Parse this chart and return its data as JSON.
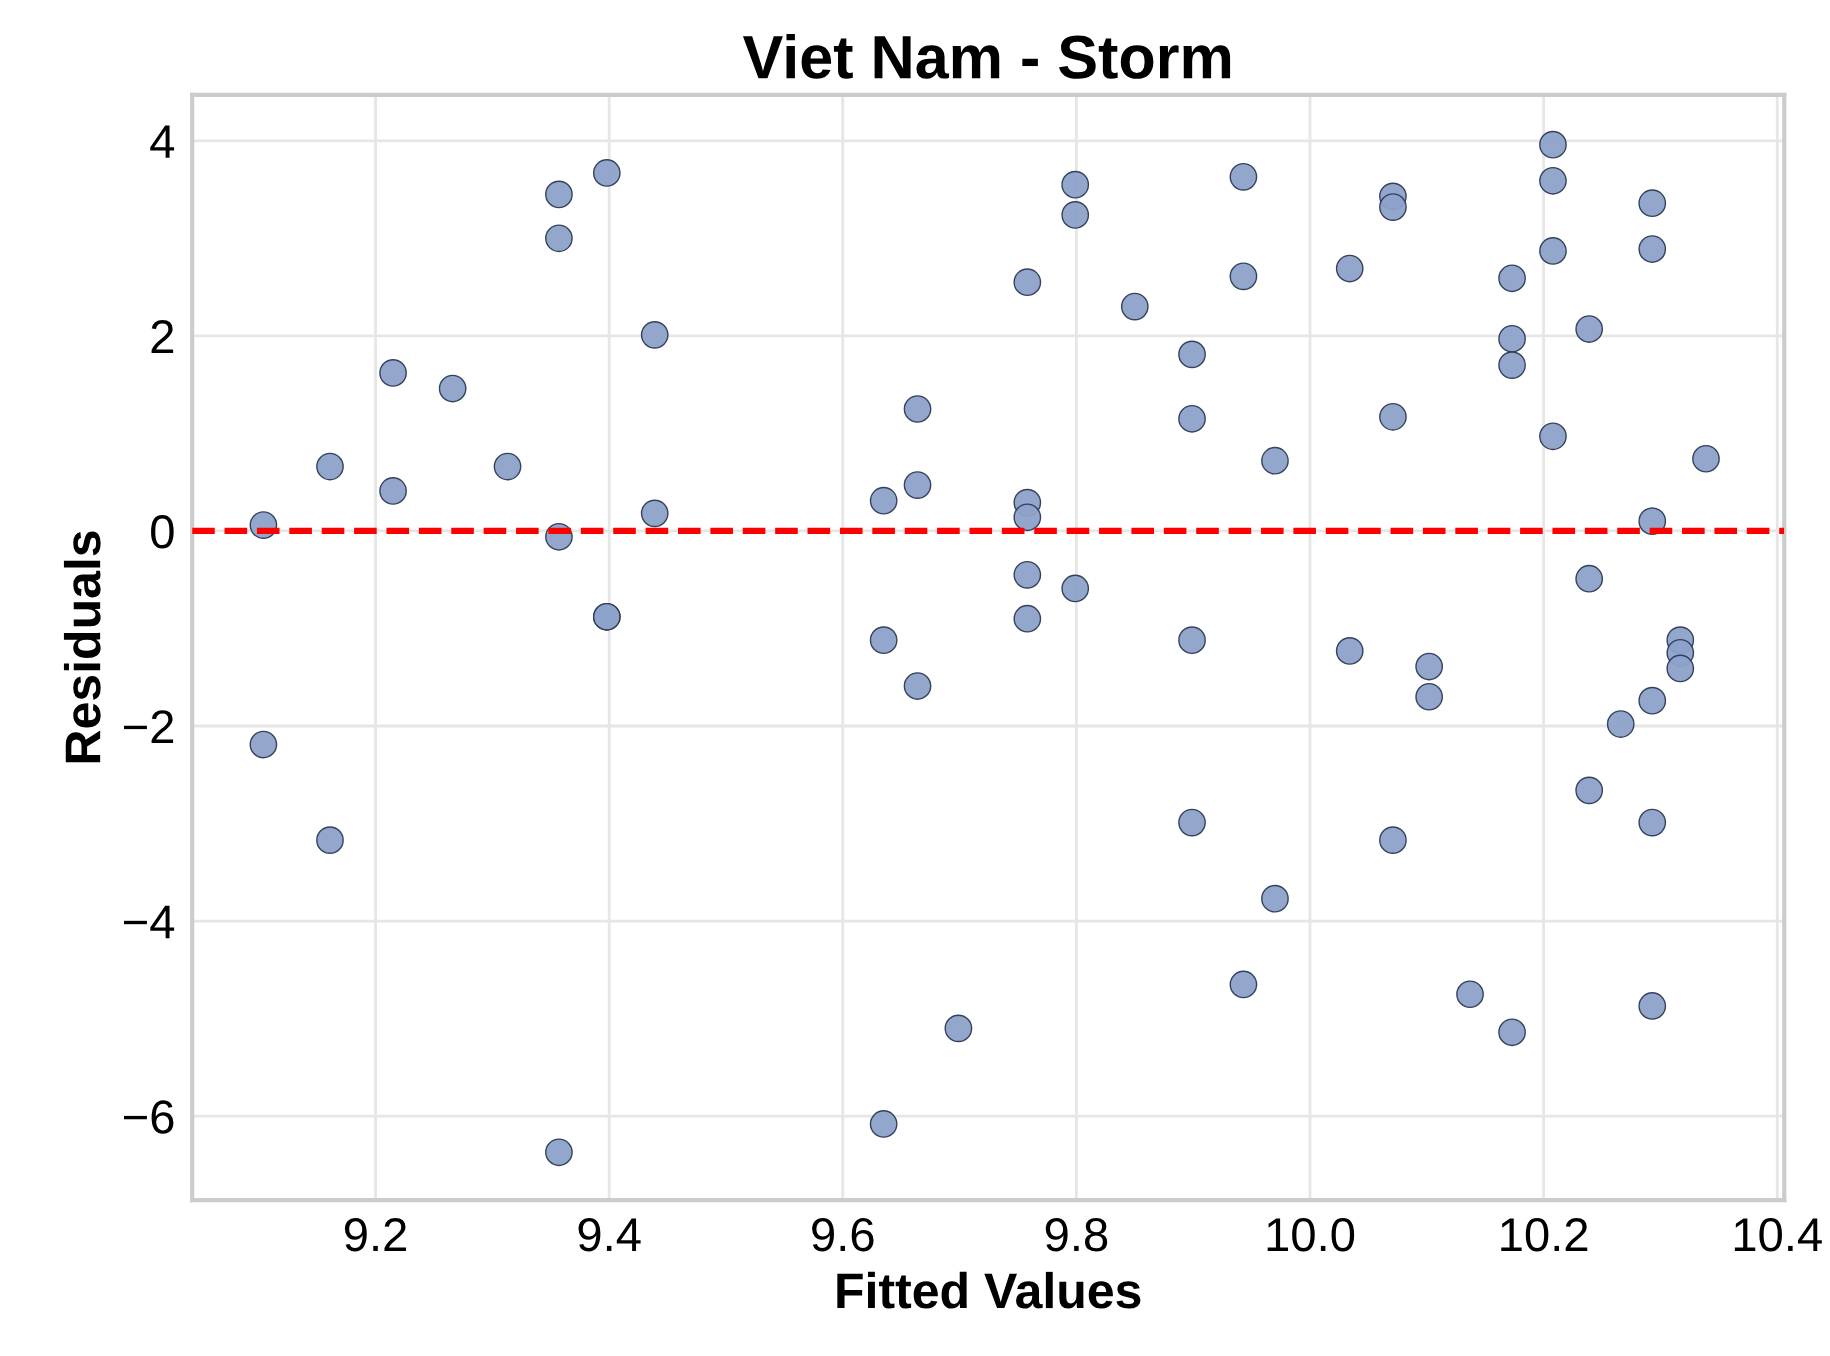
{
  "chart_data": {
    "type": "scatter",
    "title": "Viet Nam - Storm",
    "xlabel": "Fitted Values",
    "ylabel": "Residuals",
    "x": [
      9.104,
      9.104,
      9.161,
      9.161,
      9.215,
      9.215,
      9.266,
      9.313,
      9.357,
      9.357,
      9.357,
      9.357,
      9.398,
      9.398,
      9.398,
      9.439,
      9.439,
      9.635,
      9.635,
      9.635,
      9.664,
      9.664,
      9.664,
      9.699,
      9.758,
      9.758,
      9.758,
      9.758,
      9.758,
      9.799,
      9.799,
      9.799,
      9.85,
      9.899,
      9.899,
      9.899,
      9.899,
      9.943,
      9.943,
      9.943,
      9.97,
      9.97,
      10.034,
      10.034,
      10.071,
      10.071,
      10.071,
      10.071,
      10.102,
      10.102,
      10.137,
      10.173,
      10.173,
      10.173,
      10.173,
      10.208,
      10.208,
      10.208,
      10.208,
      10.239,
      10.239,
      10.239,
      10.266,
      10.293,
      10.293,
      10.293,
      10.293,
      10.293,
      10.293,
      10.317,
      10.317,
      10.317,
      10.339
    ],
    "values": [
      0.06,
      -2.19,
      0.66,
      -3.17,
      1.62,
      0.41,
      1.46,
      0.66,
      3.45,
      3.0,
      -0.06,
      -6.37,
      3.67,
      -0.88,
      -0.88,
      2.01,
      0.18,
      0.31,
      -1.12,
      -6.08,
      1.25,
      0.47,
      -1.59,
      -5.1,
      2.55,
      0.29,
      0.14,
      -0.45,
      -0.9,
      3.55,
      3.24,
      -0.59,
      2.3,
      1.81,
      1.15,
      -1.12,
      -2.99,
      3.63,
      2.61,
      -4.65,
      0.72,
      -3.77,
      2.69,
      -1.23,
      3.43,
      3.32,
      1.17,
      -3.17,
      -1.39,
      -1.7,
      -4.75,
      2.59,
      1.97,
      1.7,
      -5.14,
      3.96,
      3.59,
      2.87,
      0.97,
      2.07,
      -0.49,
      -2.66,
      -1.98,
      3.36,
      2.89,
      0.1,
      -1.74,
      -2.99,
      -4.87,
      -1.12,
      -1.25,
      -1.41,
      0.74
    ],
    "color": "#8da2ca",
    "marker": "circle",
    "xlim": [
      9.043,
      10.406
    ],
    "ylim": [
      -6.86,
      4.47
    ],
    "xticks": [
      9.2,
      9.4,
      9.6,
      9.8,
      {
        "value": 10,
        "label": "10.0"
      },
      10.2,
      10.4
    ],
    "yticks": [
      -6,
      -4,
      -2,
      0,
      2,
      4
    ],
    "ref_lines": [
      {
        "axis": "y",
        "value": 0,
        "color": "#ff0000",
        "line_style": "dashed"
      }
    ],
    "grid": true
  }
}
